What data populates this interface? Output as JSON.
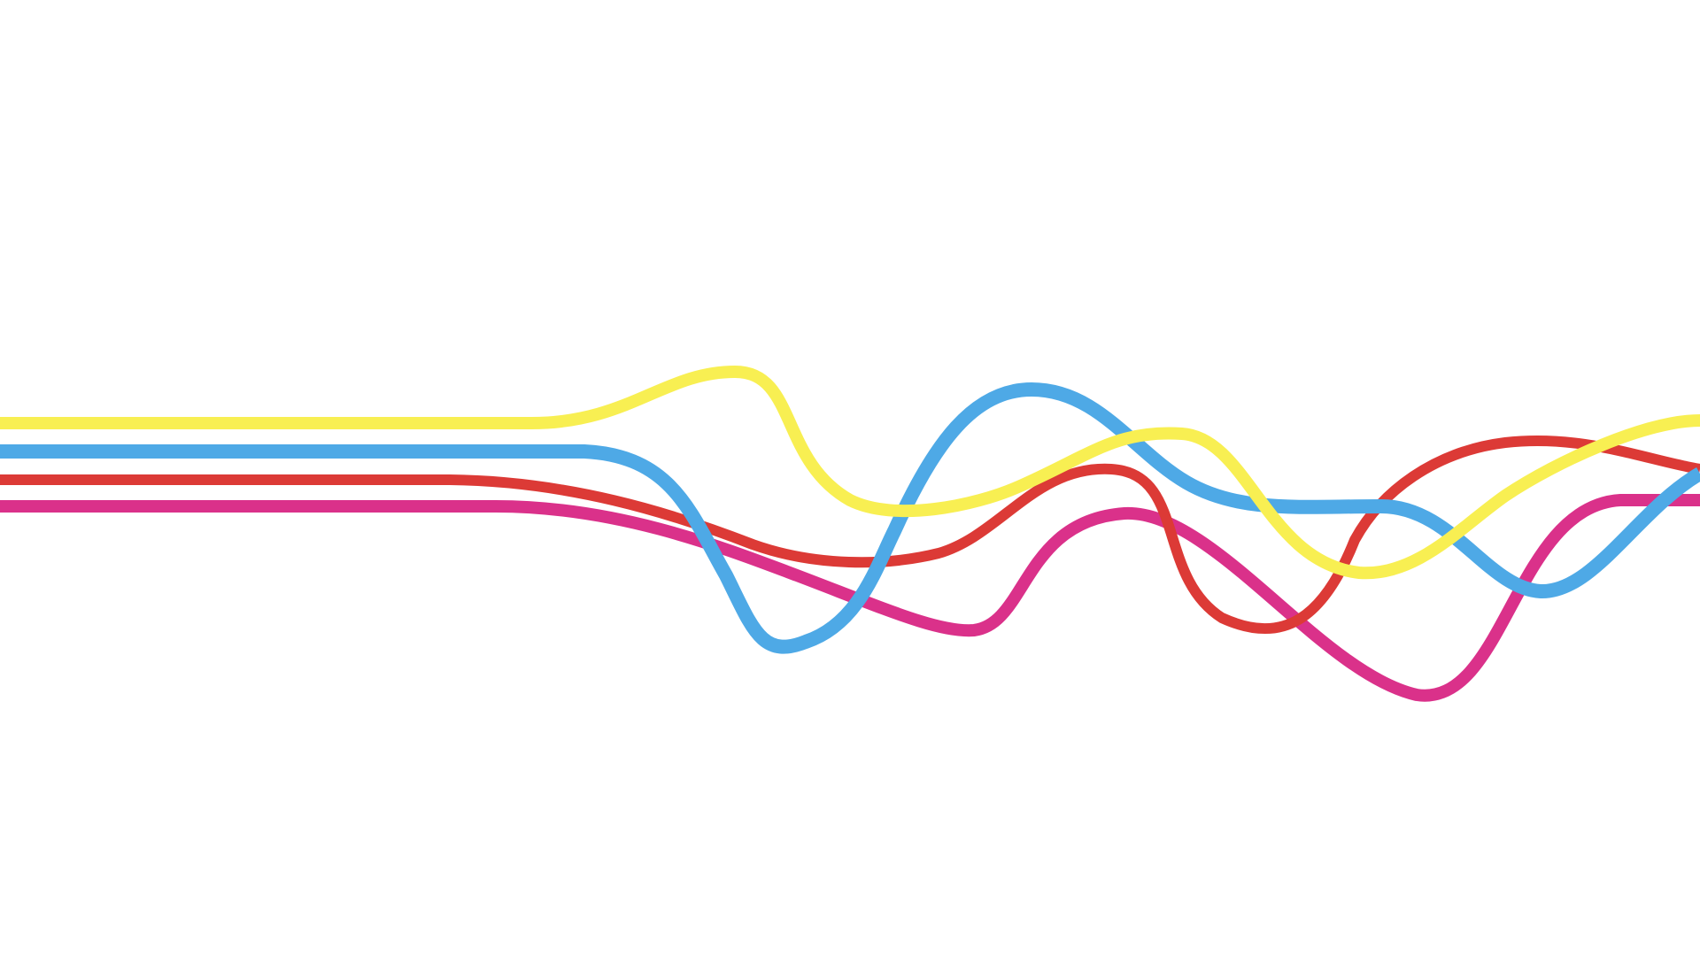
{
  "canvas": {
    "background": "#ffffff"
  },
  "ribbons": [
    {
      "name": "yellow",
      "color": "#f8ef52"
    },
    {
      "name": "blue",
      "color": "#4ea9e6"
    },
    {
      "name": "red",
      "color": "#dc3a36"
    },
    {
      "name": "magenta",
      "color": "#da318a"
    }
  ]
}
